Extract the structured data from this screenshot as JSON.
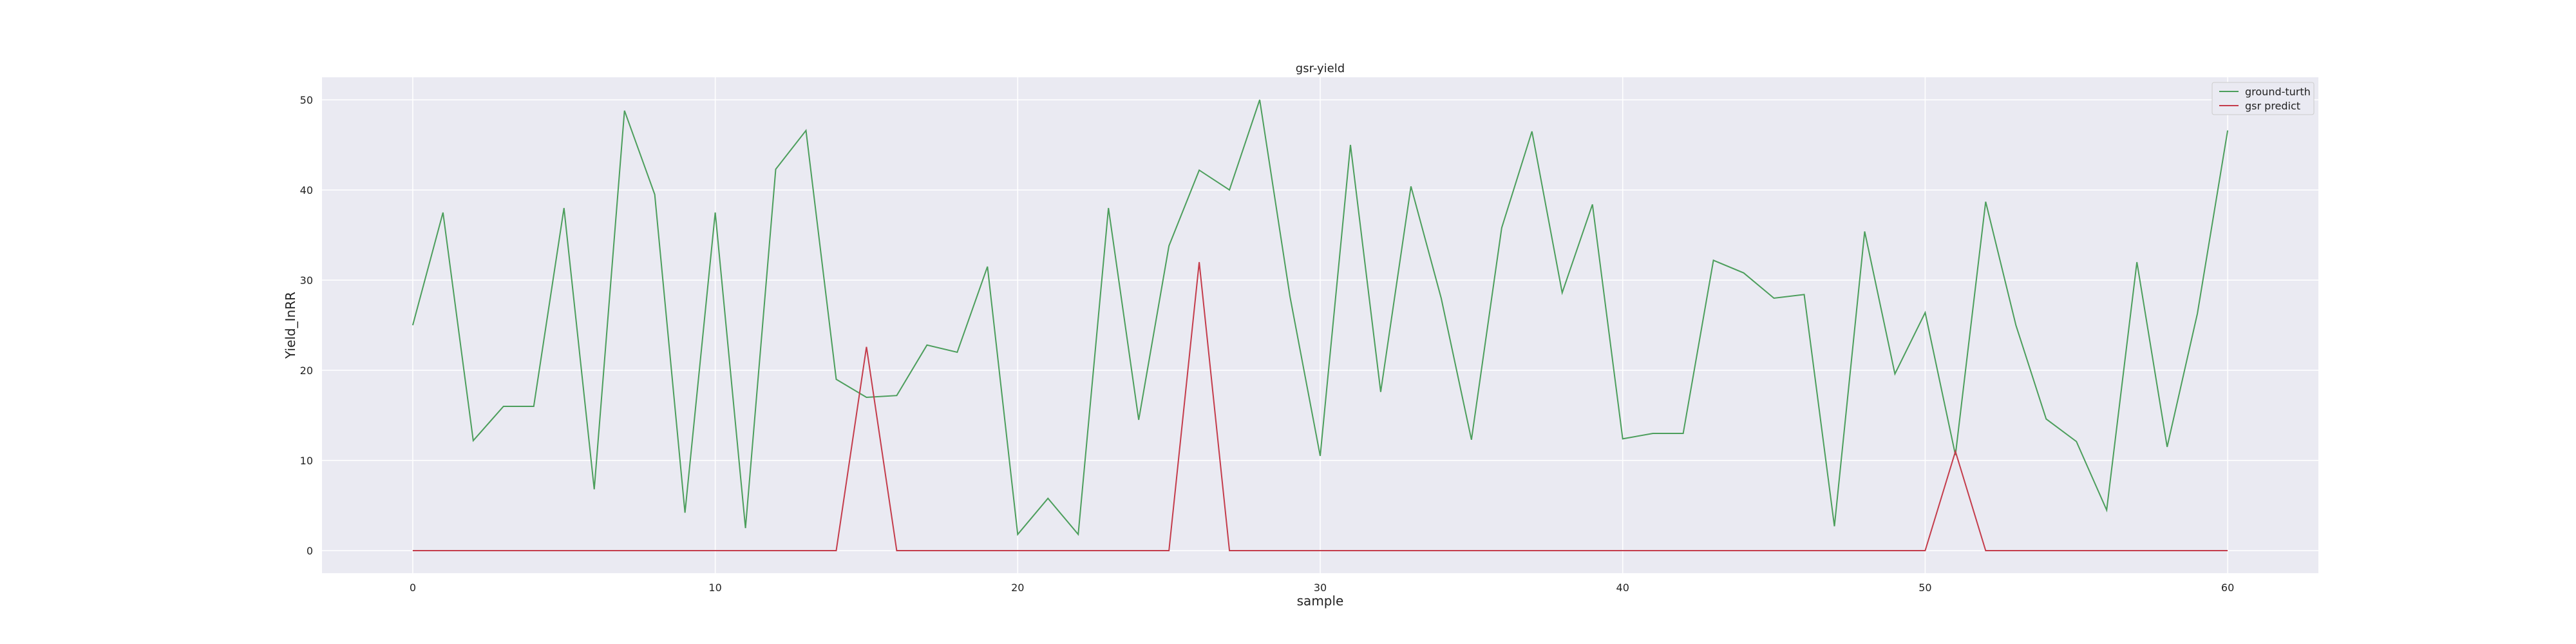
{
  "chart_data": {
    "type": "line",
    "title": "gsr-yield",
    "xlabel": "sample",
    "ylabel": "Yield_InRR",
    "xlim": [
      -3,
      63
    ],
    "ylim": [
      -2.5,
      52.5
    ],
    "xticks": [
      0,
      10,
      20,
      30,
      40,
      50,
      60
    ],
    "yticks": [
      0,
      10,
      20,
      30,
      40,
      50
    ],
    "grid": true,
    "legend_position": "top-right",
    "x": [
      0,
      1,
      2,
      3,
      4,
      5,
      6,
      7,
      8,
      9,
      10,
      11,
      12,
      13,
      14,
      15,
      16,
      17,
      18,
      19,
      20,
      21,
      22,
      23,
      24,
      25,
      26,
      27,
      28,
      29,
      30,
      31,
      32,
      33,
      34,
      35,
      36,
      37,
      38,
      39,
      40,
      41,
      42,
      43,
      44,
      45,
      46,
      47,
      48,
      49,
      50,
      51,
      52,
      53,
      54,
      55,
      56,
      57,
      58,
      59,
      60
    ],
    "series": [
      {
        "name": "ground-turth",
        "color": "#4c9e5c",
        "values": [
          25,
          37.5,
          12.2,
          16,
          16,
          38,
          6.8,
          48.8,
          39.5,
          4.2,
          37.5,
          2.5,
          42.3,
          46.6,
          19,
          17,
          17.2,
          22.8,
          22,
          31.5,
          1.8,
          5.8,
          1.8,
          38,
          14.5,
          33.8,
          42.2,
          40,
          50,
          28.2,
          10.5,
          45,
          17.6,
          40.4,
          28,
          12.3,
          35.8,
          46.5,
          28.6,
          38.4,
          12.4,
          13,
          13,
          32.2,
          30.8,
          28,
          28.4,
          2.7,
          35.4,
          19.6,
          26.4,
          10.6,
          38.7,
          25,
          14.6,
          12.1,
          4.5,
          32,
          11.5,
          26.3,
          46.6
        ]
      },
      {
        "name": "gsr predict",
        "color": "#c43c4b",
        "values": [
          0,
          0,
          0,
          0,
          0,
          0,
          0,
          0,
          0,
          0,
          0,
          0,
          0,
          0,
          0,
          22.6,
          0,
          0,
          0,
          0,
          0,
          0,
          0,
          0,
          0,
          0,
          32,
          0,
          0,
          0,
          0,
          0,
          0,
          0,
          0,
          0,
          0,
          0,
          0,
          0,
          0,
          0,
          0,
          0,
          0,
          0,
          0,
          0,
          0,
          0,
          0,
          11,
          0,
          0,
          0,
          0,
          0,
          0,
          0,
          0,
          0
        ]
      }
    ]
  },
  "colors": {
    "plot_background": "#eaeaf2",
    "grid": "#ffffff"
  }
}
